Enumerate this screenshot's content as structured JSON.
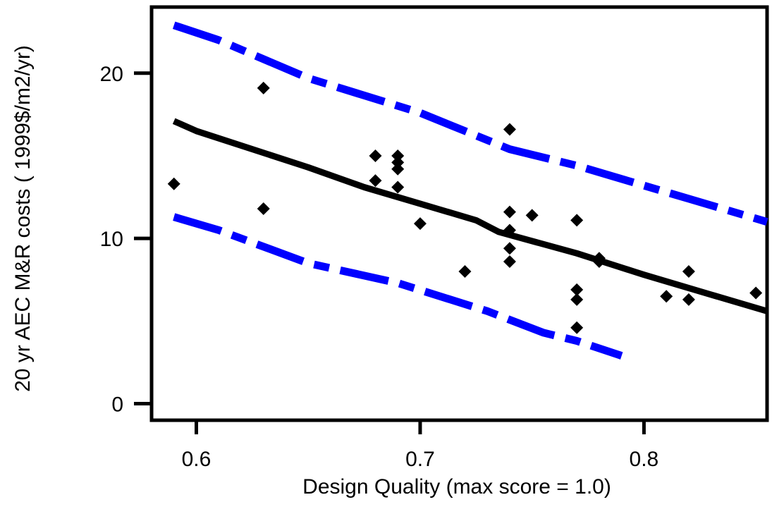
{
  "chart_data": {
    "type": "scatter",
    "xlabel": "Design Quality (max score = 1.0)",
    "ylabel": "20 yr AEC M&R costs ( 1999$/m2/yr)",
    "xlim": [
      0.58,
      0.855
    ],
    "ylim": [
      -1,
      24
    ],
    "x_ticks": [
      0.6,
      0.7,
      0.8
    ],
    "x_tick_labels": [
      "0.6",
      "0.7",
      "0.8"
    ],
    "y_ticks": [
      0,
      10,
      20
    ],
    "y_tick_labels": [
      "0",
      "10",
      "20"
    ],
    "grid": false,
    "legend": "none",
    "colors": {
      "points": "#000000",
      "fit": "#000000",
      "bounds": "#0000ff"
    },
    "points": [
      {
        "x": 0.59,
        "y": 13.3
      },
      {
        "x": 0.63,
        "y": 19.1
      },
      {
        "x": 0.63,
        "y": 11.8
      },
      {
        "x": 0.68,
        "y": 15.0
      },
      {
        "x": 0.68,
        "y": 13.5
      },
      {
        "x": 0.69,
        "y": 15.0
      },
      {
        "x": 0.69,
        "y": 14.6
      },
      {
        "x": 0.69,
        "y": 14.2
      },
      {
        "x": 0.69,
        "y": 13.1
      },
      {
        "x": 0.7,
        "y": 10.9
      },
      {
        "x": 0.72,
        "y": 8.0
      },
      {
        "x": 0.74,
        "y": 16.6
      },
      {
        "x": 0.74,
        "y": 11.6
      },
      {
        "x": 0.74,
        "y": 10.5
      },
      {
        "x": 0.74,
        "y": 9.4
      },
      {
        "x": 0.74,
        "y": 8.6
      },
      {
        "x": 0.75,
        "y": 11.4
      },
      {
        "x": 0.77,
        "y": 11.1
      },
      {
        "x": 0.77,
        "y": 6.9
      },
      {
        "x": 0.77,
        "y": 6.3
      },
      {
        "x": 0.77,
        "y": 4.6
      },
      {
        "x": 0.78,
        "y": 8.8
      },
      {
        "x": 0.78,
        "y": 8.6
      },
      {
        "x": 0.81,
        "y": 6.5
      },
      {
        "x": 0.82,
        "y": 8.0
      },
      {
        "x": 0.82,
        "y": 6.3
      },
      {
        "x": 0.85,
        "y": 6.7
      }
    ],
    "series": [
      {
        "style": "solid",
        "color": "#000000",
        "x": [
          0.59,
          0.6,
          0.65,
          0.675,
          0.7,
          0.725,
          0.735,
          0.77,
          0.8,
          0.83,
          0.855
        ],
        "y": [
          17.1,
          16.5,
          14.3,
          13.1,
          12.1,
          11.1,
          10.4,
          9.1,
          7.8,
          6.6,
          5.6
        ]
      },
      {
        "style": "dashdot",
        "color": "#0000ff",
        "x": [
          0.59,
          0.61,
          0.65,
          0.7,
          0.74,
          0.77,
          0.8,
          0.82,
          0.855
        ],
        "y": [
          22.9,
          22.0,
          19.7,
          17.6,
          15.4,
          14.4,
          13.2,
          12.4,
          11.0
        ]
      },
      {
        "style": "dashdot",
        "color": "#0000ff",
        "x": [
          0.59,
          0.61,
          0.65,
          0.69,
          0.73,
          0.755,
          0.77,
          0.79
        ],
        "y": [
          11.3,
          10.5,
          8.5,
          7.3,
          5.6,
          4.3,
          3.8,
          2.9
        ]
      }
    ]
  }
}
